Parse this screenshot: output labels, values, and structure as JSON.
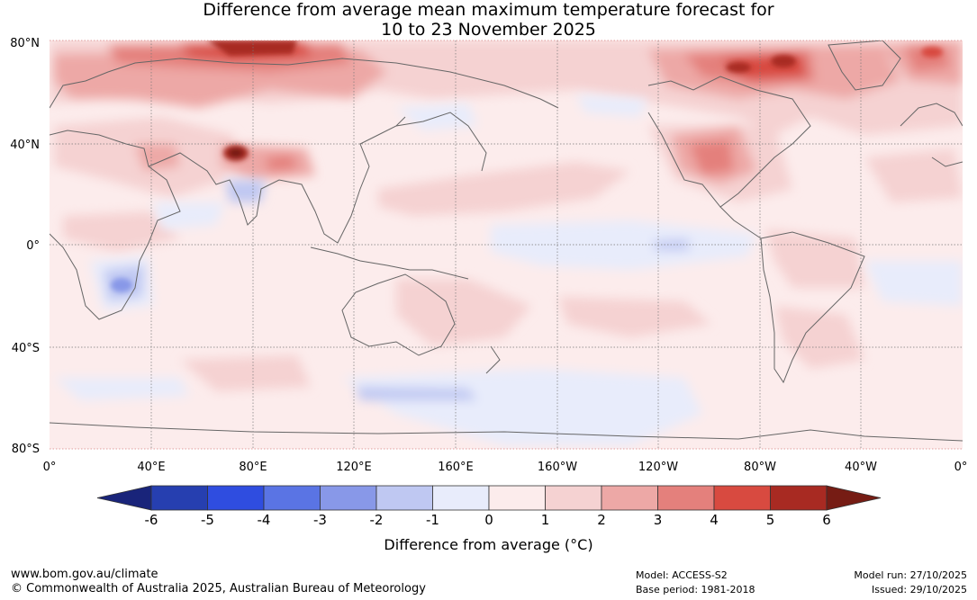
{
  "title": {
    "line1": "Difference from average mean maximum temperature forecast for",
    "line2": "10 to 23 November 2025"
  },
  "map": {
    "lat_labels": [
      "80°N",
      "40°N",
      "0°",
      "40°S",
      "80°S"
    ],
    "lon_labels": [
      "0°",
      "40°E",
      "80°E",
      "120°E",
      "160°E",
      "160°W",
      "120°W",
      "80°W",
      "40°W",
      "0°"
    ]
  },
  "colorbar": {
    "ticks": [
      "-6",
      "-5",
      "-4",
      "-3",
      "-2",
      "-1",
      "0",
      "1",
      "2",
      "3",
      "4",
      "5",
      "6"
    ],
    "colors": [
      "#19247a",
      "#263fb0",
      "#2f4de0",
      "#5a74e4",
      "#8898e8",
      "#bfc8f2",
      "#e8ecfb",
      "#fcecec",
      "#f5d2d2",
      "#eda8a6",
      "#e4807c",
      "#d84a40",
      "#a82a22",
      "#761c14"
    ],
    "label": "Difference from average (°C)"
  },
  "footer": {
    "website": "www.bom.gov.au/climate",
    "copyright": "© Commonwealth of Australia 2025, Australian Bureau of Meteorology",
    "model": "Model: ACCESS-S2",
    "base_period": "Base period: 1981-2018",
    "model_run": "Model run: 27/10/2025",
    "issued": "Issued: 29/10/2025"
  }
}
